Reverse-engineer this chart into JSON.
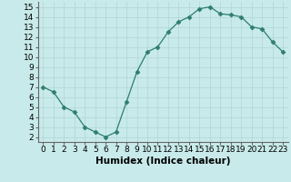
{
  "x": [
    0,
    1,
    2,
    3,
    4,
    5,
    6,
    7,
    8,
    9,
    10,
    11,
    12,
    13,
    14,
    15,
    16,
    17,
    18,
    19,
    20,
    21,
    22,
    23
  ],
  "y": [
    7.0,
    6.5,
    5.0,
    4.5,
    3.0,
    2.5,
    2.0,
    2.5,
    5.5,
    8.5,
    10.5,
    11.0,
    12.5,
    13.5,
    14.0,
    14.8,
    15.0,
    14.3,
    14.2,
    14.0,
    13.0,
    12.8,
    11.5,
    10.5
  ],
  "line_color": "#2e7d6e",
  "marker": "D",
  "marker_size": 2.5,
  "bg_color": "#c8eaea",
  "grid_color": "#b0d4d4",
  "xlabel": "Humidex (Indice chaleur)",
  "xlim": [
    -0.5,
    23.5
  ],
  "ylim": [
    1.5,
    15.5
  ],
  "yticks": [
    2,
    3,
    4,
    5,
    6,
    7,
    8,
    9,
    10,
    11,
    12,
    13,
    14,
    15
  ],
  "xticks": [
    0,
    1,
    2,
    3,
    4,
    5,
    6,
    7,
    8,
    9,
    10,
    11,
    12,
    13,
    14,
    15,
    16,
    17,
    18,
    19,
    20,
    21,
    22,
    23
  ],
  "tick_label_fontsize": 6.5,
  "xlabel_fontsize": 7.5
}
